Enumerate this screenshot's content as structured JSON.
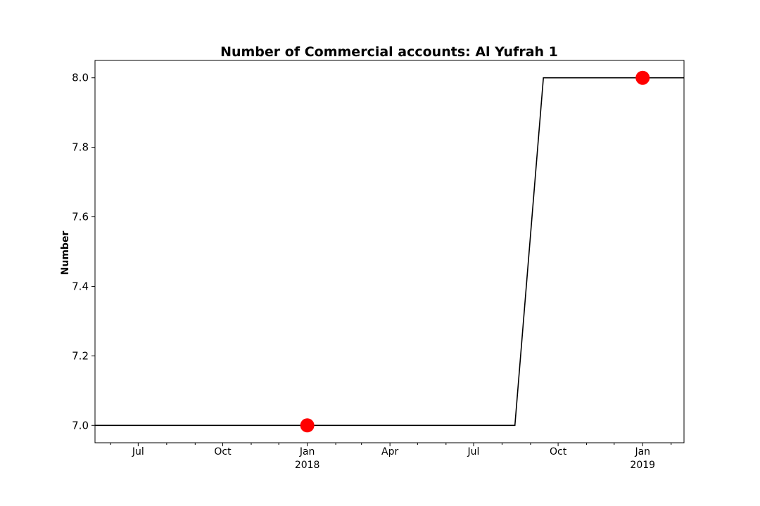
{
  "chart_data": {
    "type": "line",
    "title": "Number of Commercial accounts: Al Yufrah 1",
    "xlabel": "",
    "ylabel": "Number",
    "xlim": [
      "2017-05-15",
      "2019-02-15"
    ],
    "ylim": [
      6.95,
      8.05
    ],
    "y_ticks": [
      {
        "value": 7.0,
        "label": "7.0"
      },
      {
        "value": 7.2,
        "label": "7.2"
      },
      {
        "value": 7.4,
        "label": "7.4"
      },
      {
        "value": 7.6,
        "label": "7.6"
      },
      {
        "value": 7.8,
        "label": "7.8"
      },
      {
        "value": 8.0,
        "label": "8.0"
      }
    ],
    "x_ticks": [
      {
        "value": "2017-07-01",
        "label": "Jul",
        "sublabel": ""
      },
      {
        "value": "2017-10-01",
        "label": "Oct",
        "sublabel": ""
      },
      {
        "value": "2018-01-01",
        "label": "Jan",
        "sublabel": "2018"
      },
      {
        "value": "2018-04-01",
        "label": "Apr",
        "sublabel": ""
      },
      {
        "value": "2018-07-01",
        "label": "Jul",
        "sublabel": ""
      },
      {
        "value": "2018-10-01",
        "label": "Oct",
        "sublabel": ""
      },
      {
        "value": "2019-01-01",
        "label": "Jan",
        "sublabel": "2019"
      }
    ],
    "minor_ticks": [
      "2017-06-01",
      "2017-08-01",
      "2017-09-01",
      "2017-11-01",
      "2017-12-01",
      "2018-02-01",
      "2018-03-01",
      "2018-05-01",
      "2018-06-01",
      "2018-08-01",
      "2018-09-01",
      "2018-11-01",
      "2018-12-01",
      "2019-02-01"
    ],
    "series": [
      {
        "color": "#000000",
        "x": [
          "2017-05-15",
          "2018-08-15",
          "2018-09-15",
          "2019-02-15"
        ],
        "values": [
          7,
          7,
          8,
          8
        ]
      }
    ],
    "markers": {
      "color": "#ff0000",
      "x": [
        "2018-01-01",
        "2019-01-01"
      ],
      "values": [
        7,
        8
      ]
    },
    "grid": false
  }
}
